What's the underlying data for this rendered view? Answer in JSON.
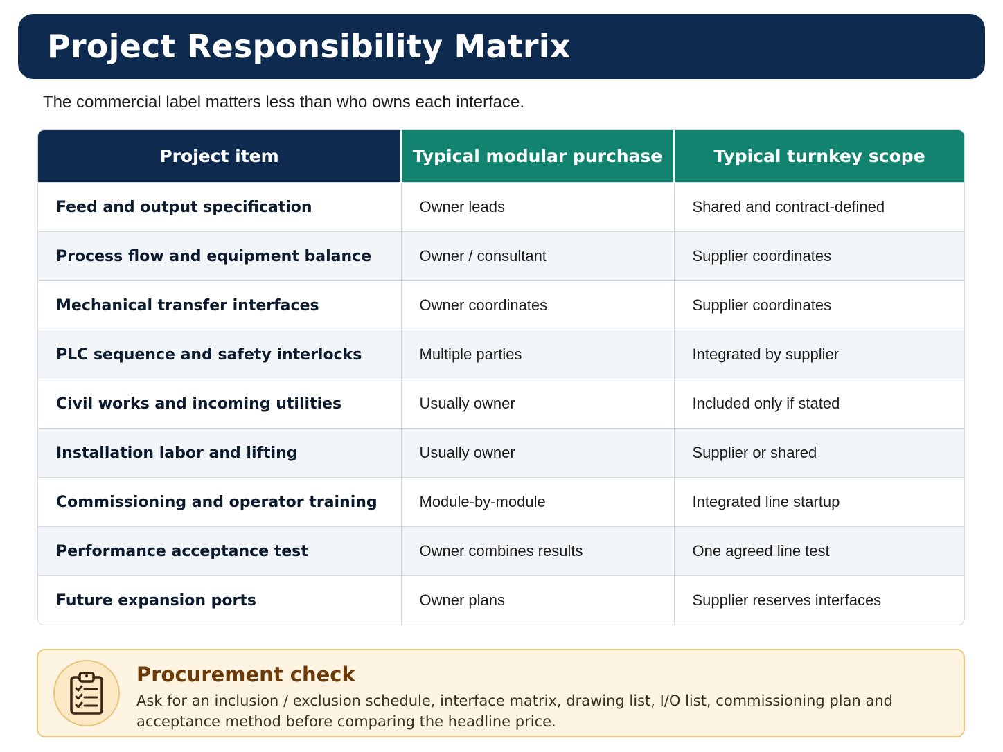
{
  "header": {
    "title": "Project Responsibility Matrix",
    "subtitle": "The commercial label matters less than who owns each interface."
  },
  "table": {
    "columns": [
      "Project item",
      "Typical modular purchase",
      "Typical turnkey scope"
    ],
    "rows": [
      [
        "Feed and output specification",
        "Owner leads",
        "Shared and contract-defined"
      ],
      [
        "Process flow and equipment balance",
        "Owner / consultant",
        "Supplier coordinates"
      ],
      [
        "Mechanical transfer interfaces",
        "Owner coordinates",
        "Supplier coordinates"
      ],
      [
        "PLC sequence and safety interlocks",
        "Multiple parties",
        "Integrated by supplier"
      ],
      [
        "Civil works and incoming utilities",
        "Usually owner",
        "Included only if stated"
      ],
      [
        "Installation labor and lifting",
        "Usually owner",
        "Supplier or shared"
      ],
      [
        "Commissioning and operator training",
        "Module-by-module",
        "Integrated line startup"
      ],
      [
        "Performance acceptance test",
        "Owner combines results",
        "One agreed line test"
      ],
      [
        "Future expansion ports",
        "Owner plans",
        "Supplier reserves interfaces"
      ]
    ]
  },
  "callout": {
    "icon": "clipboard-checklist-icon",
    "title": "Procurement check",
    "text": "Ask for an inclusion / exclusion schedule, interface matrix, drawing list, I/O list, commissioning plan and acceptance method before comparing the headline price."
  },
  "colors": {
    "navy": "#0e2a4f",
    "teal": "#12836f",
    "callout_bg": "#fdf4e2",
    "callout_border": "#ecc77e",
    "callout_title": "#6b3a08"
  }
}
